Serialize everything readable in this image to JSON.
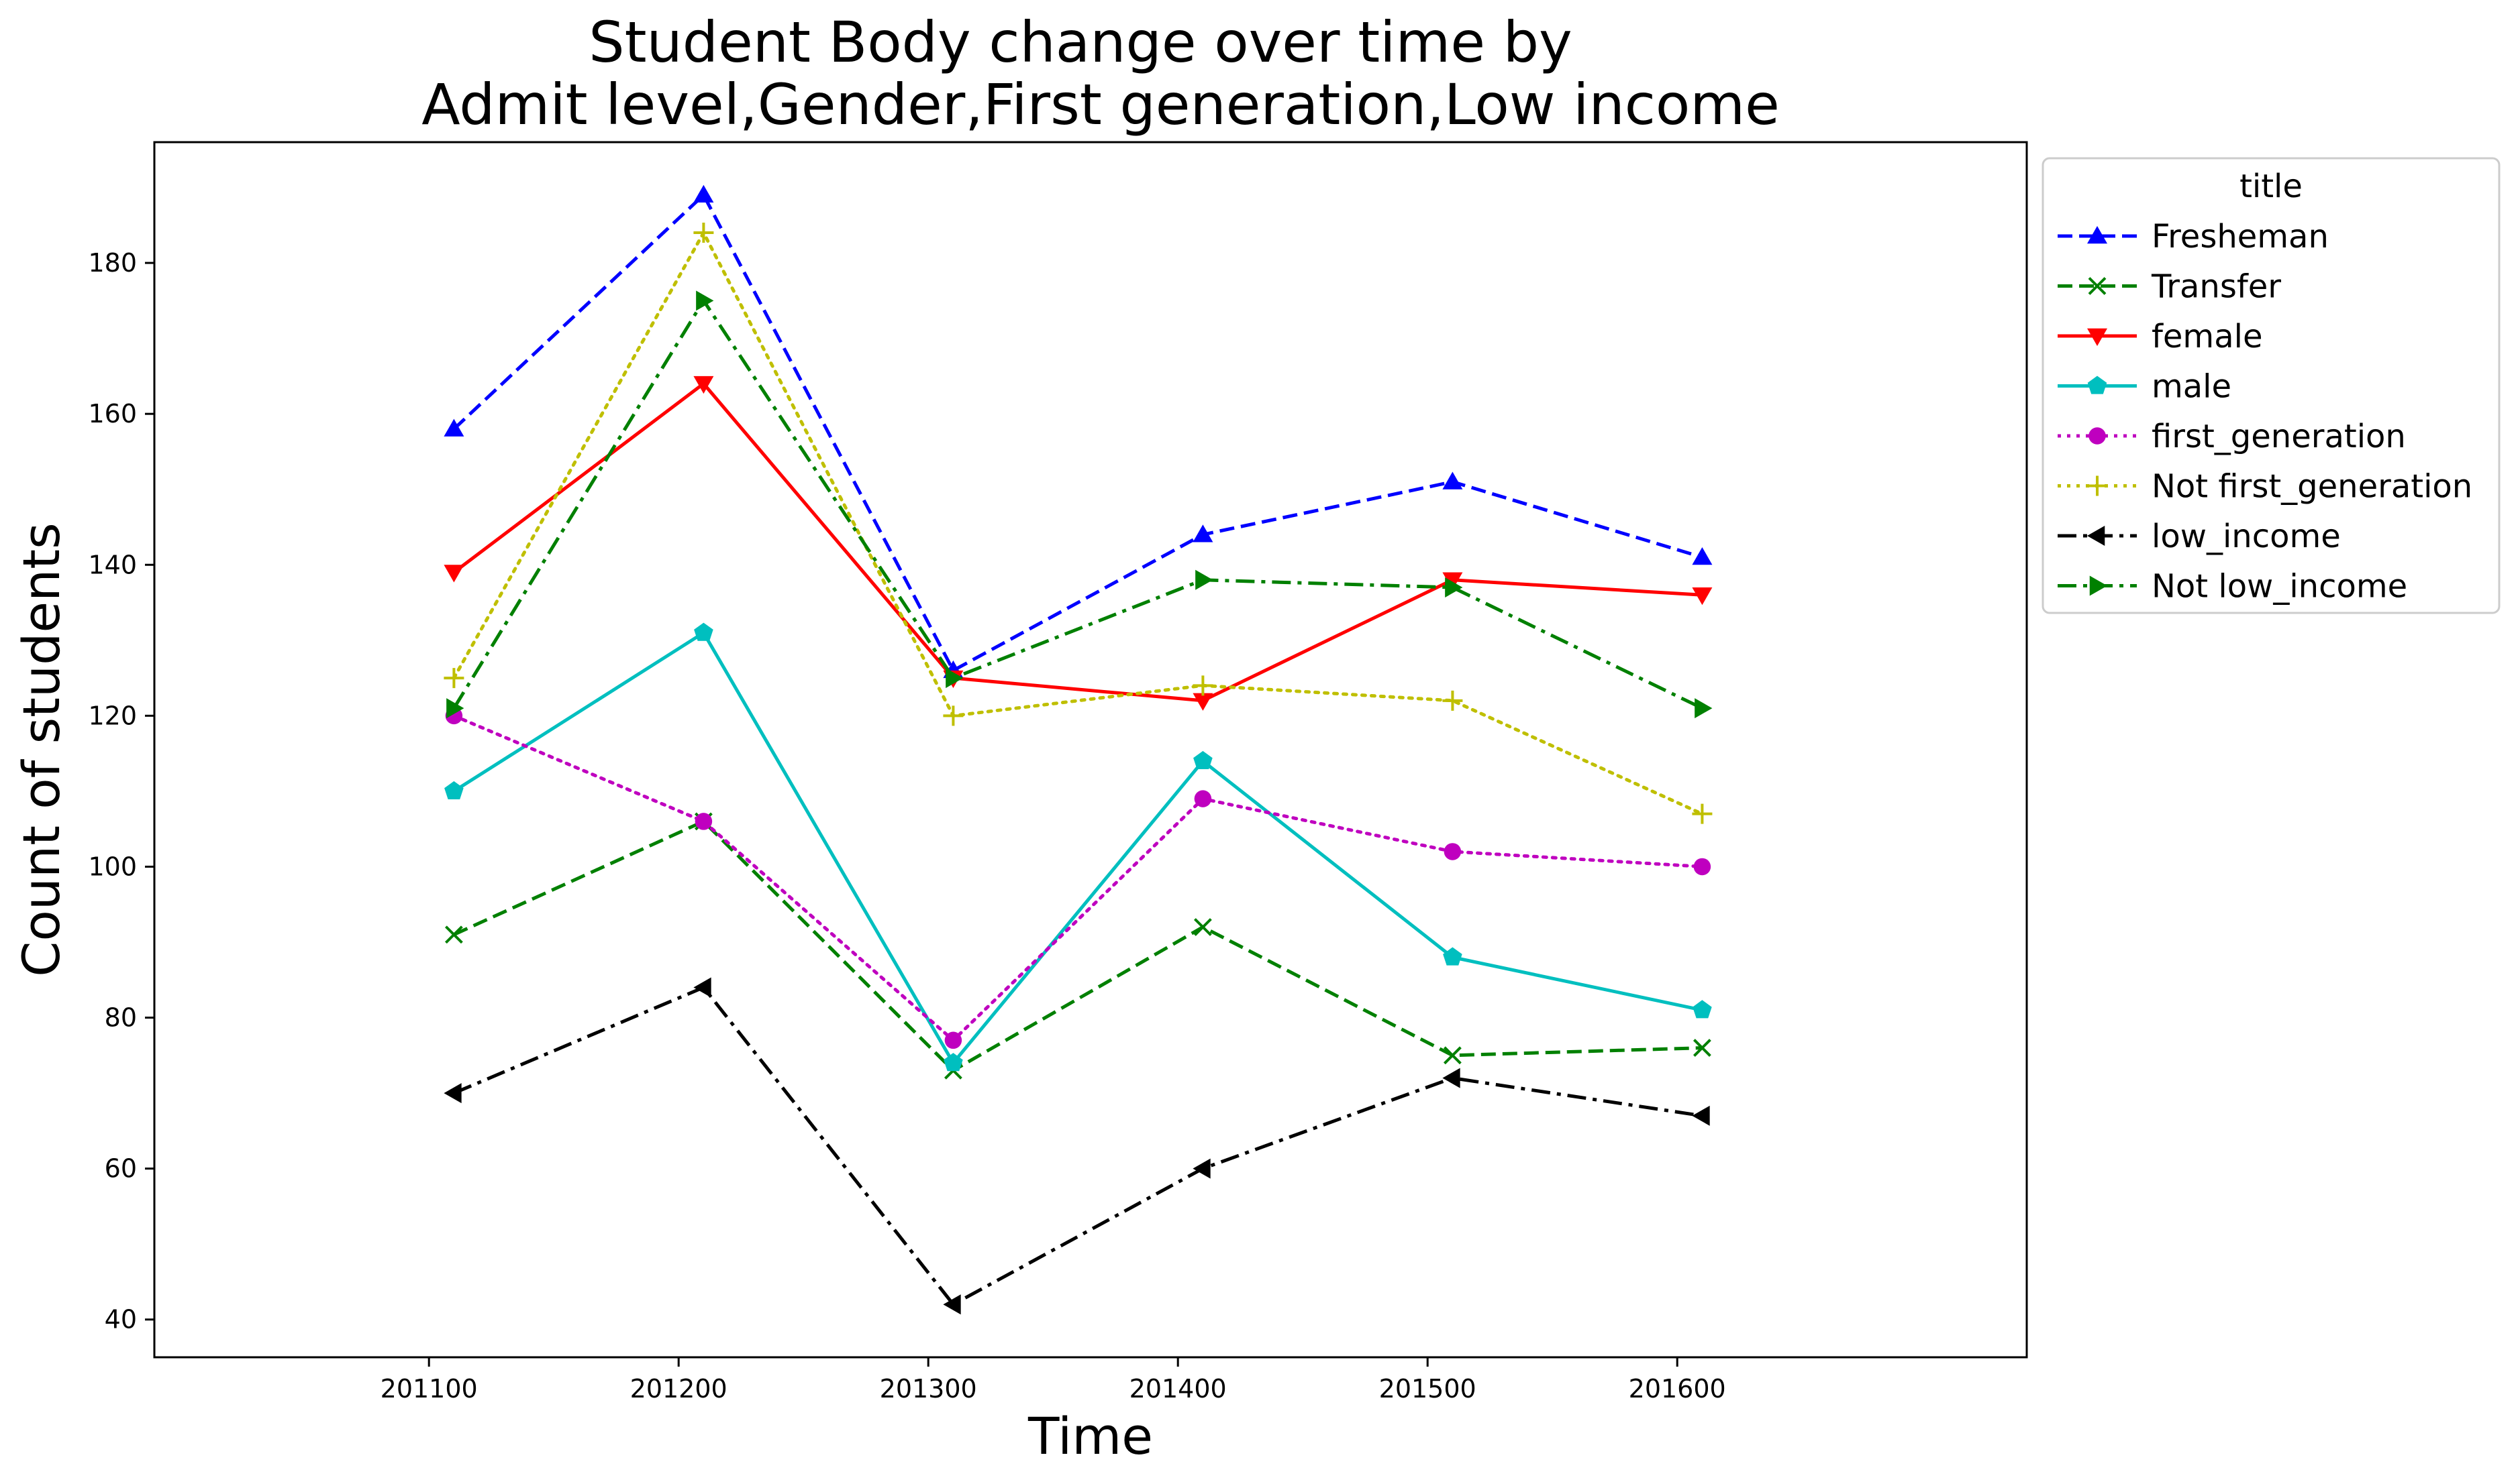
{
  "chart_data": {
    "type": "line",
    "title_lines": [
      "Student Body change over time by",
      "Admit level,Gender,First generation,Low income"
    ],
    "xlabel": "Time",
    "ylabel": "Count of students",
    "x": [
      201110,
      201210,
      201310,
      201410,
      201510,
      201610
    ],
    "xticks": [
      201100,
      201200,
      201300,
      201400,
      201500,
      201600
    ],
    "yticks": [
      40,
      60,
      80,
      100,
      120,
      140,
      160,
      180
    ],
    "xlim": [
      200990,
      201740
    ],
    "ylim": [
      35,
      196
    ],
    "grid": false,
    "legend": {
      "title": "title",
      "placement": "outside-top-right"
    },
    "series": [
      {
        "name": "Fresheman",
        "values": [
          158,
          189,
          126,
          144,
          151,
          141
        ],
        "color": "#0000ff",
        "dash": "dashed",
        "marker": "triangle-up"
      },
      {
        "name": "Transfer",
        "values": [
          91,
          106,
          73,
          92,
          75,
          76
        ],
        "color": "#008000",
        "dash": "dashed",
        "marker": "x"
      },
      {
        "name": "female",
        "values": [
          139,
          164,
          125,
          122,
          138,
          136
        ],
        "color": "#ff0000",
        "dash": "solid",
        "marker": "triangle-down"
      },
      {
        "name": "male",
        "values": [
          110,
          131,
          74,
          114,
          88,
          81
        ],
        "color": "#00bfbf",
        "dash": "solid",
        "marker": "pentagon"
      },
      {
        "name": "first_generation",
        "values": [
          120,
          106,
          77,
          109,
          102,
          100
        ],
        "color": "#bf00bf",
        "dash": "dotted",
        "marker": "circle"
      },
      {
        "name": "Not first_generation",
        "values": [
          125,
          184,
          120,
          124,
          122,
          107
        ],
        "color": "#bfbf00",
        "dash": "dotted",
        "marker": "plus"
      },
      {
        "name": "low_income",
        "values": [
          70,
          84,
          42,
          60,
          72,
          67
        ],
        "color": "#000000",
        "dash": "dashdot",
        "marker": "triangle-left"
      },
      {
        "name": "Not low_income",
        "values": [
          121,
          175,
          125,
          138,
          137,
          121
        ],
        "color": "#008000",
        "dash": "dashdot",
        "marker": "triangle-right"
      }
    ]
  }
}
